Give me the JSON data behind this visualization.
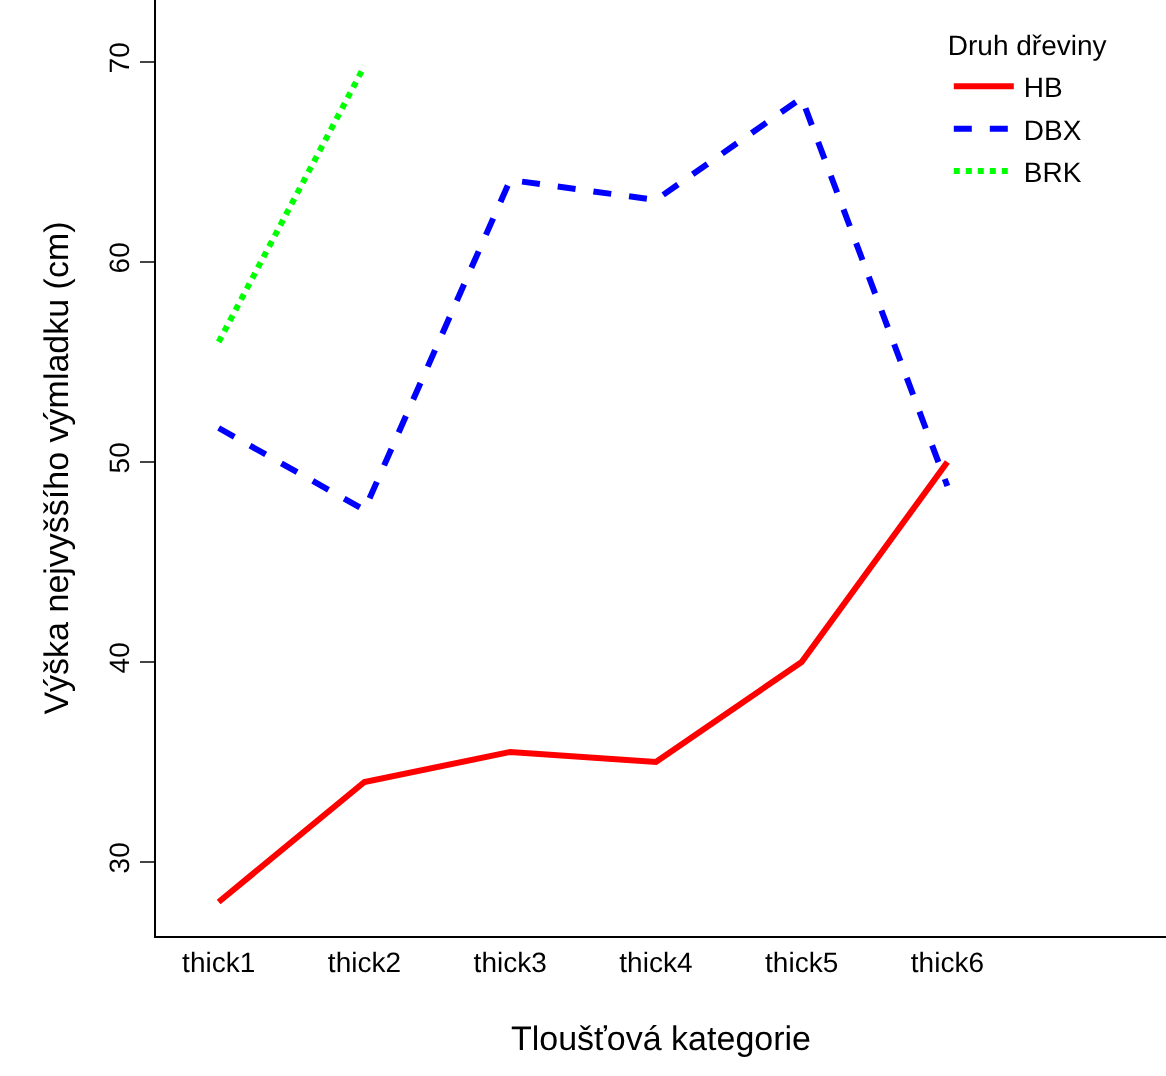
{
  "chart_data": {
    "type": "line",
    "xlabel": "Tloušťová kategorie",
    "ylabel": "Výška nejvyššího výmladku (cm)",
    "legend_title": "Druh dřeviny",
    "categories": [
      "thick1",
      "thick2",
      "thick3",
      "thick4",
      "thick5",
      "thick6"
    ],
    "series": [
      {
        "name": "HB",
        "color": "#ff0000",
        "line_style": "solid",
        "values": [
          28,
          34,
          35.5,
          35,
          40,
          50
        ]
      },
      {
        "name": "DBX",
        "color": "#0000ff",
        "line_style": "dashed",
        "values": [
          51.7,
          47.6,
          64.1,
          63.1,
          68.2,
          48.8
        ]
      },
      {
        "name": "BRK",
        "color": "#00ff00",
        "line_style": "dotted",
        "values": [
          56,
          69.8,
          null,
          null,
          null,
          null
        ]
      }
    ],
    "ylim": [
      26.3,
      73.1
    ],
    "yticks": [
      30,
      40,
      50,
      60,
      70
    ],
    "grid": false,
    "legend": "top right",
    "marker": "none"
  }
}
